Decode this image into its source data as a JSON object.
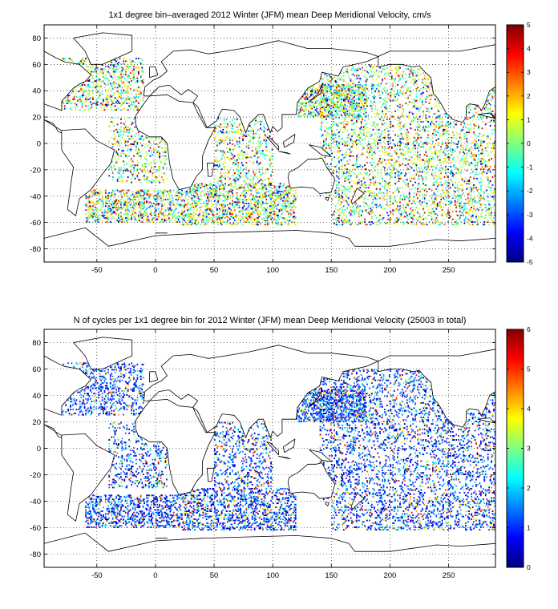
{
  "chart_data": [
    {
      "type": "heatmap",
      "title": "1x1 degree bin–averaged 2012 Winter (JFM) mean Deep Meridional Velocity, cm/s",
      "xlabel": "",
      "ylabel": "",
      "xlim": [
        -95,
        290
      ],
      "ylim": [
        -90,
        90
      ],
      "x_ticks": [
        -50,
        0,
        50,
        100,
        150,
        200,
        250
      ],
      "x_tick_labels": [
        "-50",
        "0",
        "50",
        "100",
        "150",
        "200",
        "250"
      ],
      "y_ticks": [
        80,
        60,
        40,
        20,
        0,
        -20,
        -40,
        -60,
        -80
      ],
      "y_tick_labels": [
        "80",
        "60",
        "40",
        "20",
        "0",
        "-20",
        "-40",
        "-60",
        "-80"
      ],
      "grid": true,
      "grid_style": "dotted",
      "colormap": "jet",
      "colorbar": {
        "range": [
          -5,
          5
        ],
        "ticks": [
          5,
          4,
          3,
          2,
          1,
          0,
          -1,
          -2,
          -3,
          -4,
          -5
        ],
        "tick_labels": [
          "5",
          "4",
          "3",
          "2",
          "1",
          "0",
          "-1",
          "-2",
          "-3",
          "-4",
          "-5"
        ]
      },
      "sampling_regions": [
        {
          "lon": [
            -80,
            -10
          ],
          "lat": [
            25,
            65
          ],
          "density": 0.45
        },
        {
          "lon": [
            -40,
            10
          ],
          "lat": [
            -30,
            20
          ],
          "density": 0.35
        },
        {
          "lon": [
            -60,
            20
          ],
          "lat": [
            -60,
            -35
          ],
          "density": 0.65
        },
        {
          "lon": [
            20,
            120
          ],
          "lat": [
            -62,
            -30
          ],
          "density": 0.6
        },
        {
          "lon": [
            50,
            100
          ],
          "lat": [
            -30,
            20
          ],
          "density": 0.35
        },
        {
          "lon": [
            120,
            180
          ],
          "lat": [
            20,
            45
          ],
          "density": 0.7
        },
        {
          "lon": [
            140,
            290
          ],
          "lat": [
            -40,
            60
          ],
          "density": 0.35
        },
        {
          "lon": [
            150,
            290
          ],
          "lat": [
            -62,
            -40
          ],
          "density": 0.4
        }
      ]
    },
    {
      "type": "heatmap",
      "title": "N of cycles per 1x1 degree bin for 2012 Winter (JFM) mean Deep Meridional Velocity (25003 in total)",
      "xlabel": "",
      "ylabel": "",
      "xlim": [
        -95,
        290
      ],
      "ylim": [
        -90,
        90
      ],
      "x_ticks": [
        -50,
        0,
        50,
        100,
        150,
        200,
        250
      ],
      "x_tick_labels": [
        "-50",
        "0",
        "50",
        "100",
        "150",
        "200",
        "250"
      ],
      "y_ticks": [
        80,
        60,
        40,
        20,
        0,
        -20,
        -40,
        -60,
        -80
      ],
      "y_tick_labels": [
        "80",
        "60",
        "40",
        "20",
        "0",
        "-20",
        "-40",
        "-60",
        "-80"
      ],
      "grid": true,
      "grid_style": "dotted",
      "colormap": "jet",
      "colorbar": {
        "range": [
          0,
          6
        ],
        "ticks": [
          6,
          5,
          4,
          3,
          2,
          1,
          0
        ],
        "tick_labels": [
          "6",
          "5",
          "4",
          "3",
          "2",
          "1",
          "0"
        ]
      },
      "sampling_regions": [
        {
          "lon": [
            -80,
            -10
          ],
          "lat": [
            25,
            65
          ],
          "density": 0.45
        },
        {
          "lon": [
            -40,
            10
          ],
          "lat": [
            -30,
            20
          ],
          "density": 0.35
        },
        {
          "lon": [
            -60,
            20
          ],
          "lat": [
            -60,
            -35
          ],
          "density": 0.65
        },
        {
          "lon": [
            20,
            120
          ],
          "lat": [
            -62,
            -30
          ],
          "density": 0.6
        },
        {
          "lon": [
            50,
            100
          ],
          "lat": [
            -30,
            20
          ],
          "density": 0.35
        },
        {
          "lon": [
            120,
            180
          ],
          "lat": [
            20,
            45
          ],
          "density": 0.7
        },
        {
          "lon": [
            140,
            290
          ],
          "lat": [
            -40,
            60
          ],
          "density": 0.35
        },
        {
          "lon": [
            150,
            290
          ],
          "lat": [
            -62,
            -40
          ],
          "density": 0.4
        }
      ]
    }
  ]
}
